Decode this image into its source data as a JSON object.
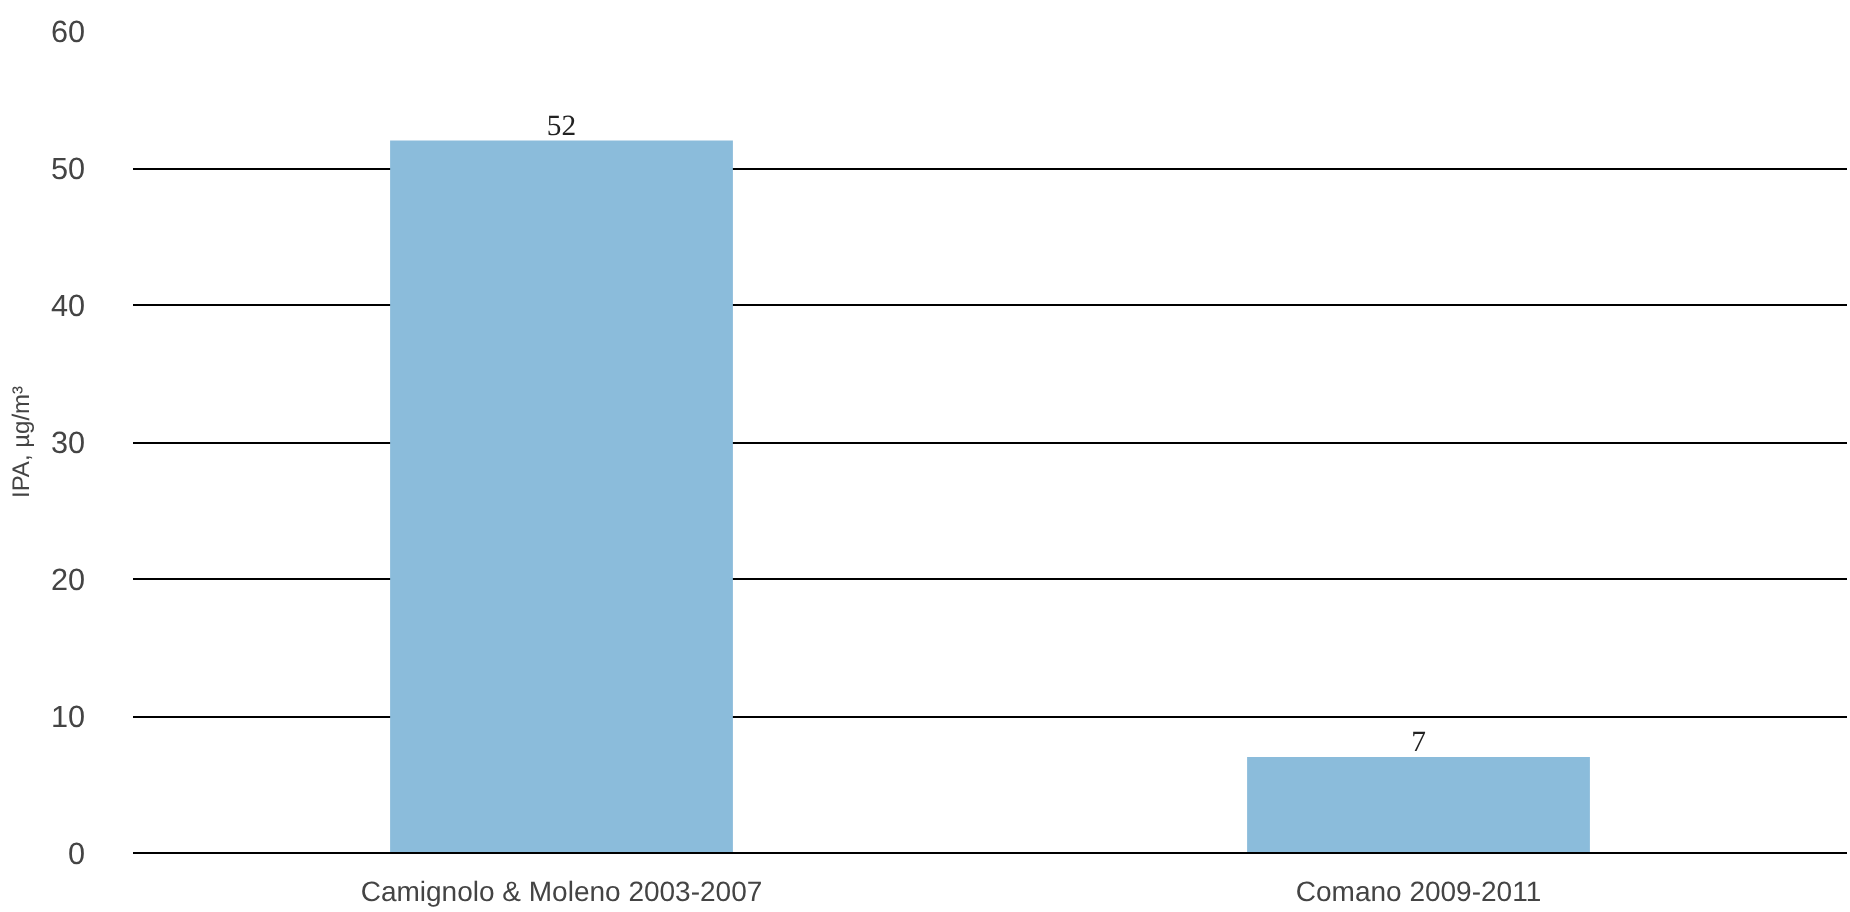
{
  "chart_data": {
    "type": "bar",
    "ylabel": "IPA, µg/m³",
    "categories": [
      "Camignolo & Moleno 2003-2007",
      "Comano 2009-2011"
    ],
    "values": [
      52,
      7
    ],
    "color": "#8bbcdb",
    "ylim": [
      0,
      60
    ],
    "yticks": [
      0,
      10,
      20,
      30,
      40,
      50,
      60
    ],
    "grid": "y",
    "data_labels": true
  }
}
